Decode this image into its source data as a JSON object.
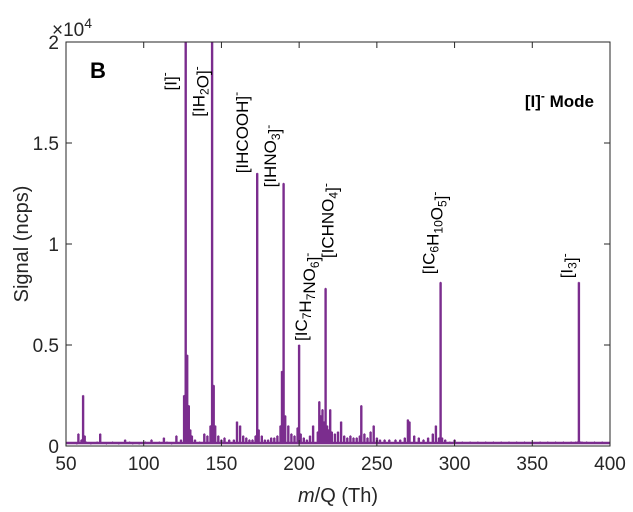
{
  "chart_data": {
    "type": "line",
    "panel_label": "B",
    "mode_label": {
      "main": "[I]",
      "sup": "-",
      "suffix": " Mode"
    },
    "xlabel": {
      "italic": "m",
      "rest": "/Q (Th)"
    },
    "ylabel": "Signal (ncps)",
    "exponent_label": {
      "prefix": "×10",
      "power": "4"
    },
    "xlim": [
      50,
      400
    ],
    "ylim": [
      0,
      2
    ],
    "xticks": [
      "50",
      "100",
      "150",
      "200",
      "250",
      "300",
      "350",
      "400"
    ],
    "yticks": [
      "0",
      "0.5",
      "1",
      "1.5",
      "2"
    ],
    "line_color": "#7B2D8E",
    "series": [
      {
        "x": [
          57,
          58,
          60,
          61,
          62,
          63,
          66,
          70,
          72,
          76,
          80,
          84,
          88,
          91,
          93,
          97,
          101,
          105,
          110,
          113,
          115,
          118,
          121,
          124,
          126,
          127,
          128,
          129,
          130,
          131,
          133,
          136,
          139,
          141,
          143,
          144,
          145,
          146,
          148,
          150,
          152,
          155,
          158,
          160,
          162,
          164,
          166,
          168,
          170,
          172,
          173,
          174,
          176,
          178,
          180,
          182,
          184,
          186,
          188,
          189,
          190,
          191,
          193,
          195,
          197,
          199,
          200,
          201,
          203,
          205,
          207,
          209,
          212,
          213,
          214,
          215,
          216,
          217,
          218,
          219,
          220,
          221,
          223,
          225,
          227,
          229,
          231,
          233,
          235,
          237,
          239,
          240,
          242,
          244,
          246,
          248,
          250,
          252,
          255,
          258,
          262,
          265,
          268,
          270,
          271,
          274,
          277,
          280,
          283,
          286,
          288,
          290,
          291,
          292,
          294,
          297,
          300,
          305,
          310,
          315,
          320,
          325,
          330,
          335,
          340,
          345,
          350,
          355,
          360,
          365,
          370,
          375,
          378,
          379,
          380,
          381,
          382,
          385,
          390,
          395,
          400
        ],
        "y": [
          0.01,
          0.06,
          0.03,
          0.25,
          0.05,
          0.02,
          0.01,
          0.02,
          0.06,
          0.01,
          0.02,
          0.01,
          0.03,
          0.02,
          0.01,
          0.01,
          0.02,
          0.03,
          0.02,
          0.04,
          0.02,
          0.01,
          0.05,
          0.03,
          0.25,
          2.0,
          0.45,
          0.2,
          0.08,
          0.05,
          0.03,
          0.02,
          0.06,
          0.05,
          0.1,
          2.0,
          0.3,
          0.1,
          0.05,
          0.03,
          0.04,
          0.03,
          0.03,
          0.12,
          0.1,
          0.05,
          0.04,
          0.03,
          0.03,
          0.05,
          1.35,
          0.08,
          0.05,
          0.03,
          0.03,
          0.04,
          0.04,
          0.05,
          0.1,
          0.37,
          1.3,
          0.15,
          0.1,
          0.06,
          0.05,
          0.09,
          0.5,
          0.06,
          0.04,
          0.03,
          0.05,
          0.1,
          0.07,
          0.22,
          0.15,
          0.18,
          0.12,
          0.78,
          0.1,
          0.08,
          0.18,
          0.07,
          0.06,
          0.07,
          0.12,
          0.05,
          0.04,
          0.05,
          0.04,
          0.04,
          0.05,
          0.2,
          0.06,
          0.04,
          0.07,
          0.1,
          0.04,
          0.03,
          0.03,
          0.03,
          0.03,
          0.03,
          0.04,
          0.13,
          0.12,
          0.05,
          0.04,
          0.03,
          0.04,
          0.06,
          0.1,
          0.04,
          0.81,
          0.04,
          0.03,
          0.02,
          0.03,
          0.02,
          0.02,
          0.02,
          0.02,
          0.02,
          0.02,
          0.02,
          0.02,
          0.02,
          0.02,
          0.02,
          0.02,
          0.02,
          0.02,
          0.02,
          0.02,
          0.02,
          0.81,
          0.02,
          0.02,
          0.02,
          0.02,
          0.02,
          0.02
        ]
      }
    ],
    "annotations": [
      {
        "x": 121,
        "y": 1.76,
        "parts": [
          {
            "t": "[I]"
          },
          {
            "t": "-",
            "s": "sup"
          }
        ]
      },
      {
        "x": 139,
        "y": 1.63,
        "parts": [
          {
            "t": "[IH"
          },
          {
            "t": "2",
            "s": "sub"
          },
          {
            "t": "O]"
          },
          {
            "t": "-",
            "s": "sup"
          }
        ]
      },
      {
        "x": 167,
        "y": 1.35,
        "parts": [
          {
            "t": "[IHCOOH]"
          },
          {
            "t": "-",
            "s": "sup"
          }
        ]
      },
      {
        "x": 185,
        "y": 1.28,
        "parts": [
          {
            "t": "[IHNO"
          },
          {
            "t": "3",
            "s": "sub"
          },
          {
            "t": "]"
          },
          {
            "t": "-",
            "s": "sup"
          }
        ]
      },
      {
        "x": 205,
        "y": 0.52,
        "parts": [
          {
            "t": "[IC"
          },
          {
            "t": "7",
            "s": "sub"
          },
          {
            "t": "H"
          },
          {
            "t": "7",
            "s": "sub"
          },
          {
            "t": "NO"
          },
          {
            "t": "6",
            "s": "sub"
          },
          {
            "t": "]"
          },
          {
            "t": "-",
            "s": "sup"
          }
        ]
      },
      {
        "x": 222,
        "y": 0.93,
        "parts": [
          {
            "t": "[ICHNO"
          },
          {
            "t": "4",
            "s": "sub"
          },
          {
            "t": "]"
          },
          {
            "t": "-",
            "s": "sup"
          }
        ]
      },
      {
        "x": 287,
        "y": 0.85,
        "parts": [
          {
            "t": "[IC"
          },
          {
            "t": "6",
            "s": "sub"
          },
          {
            "t": "H"
          },
          {
            "t": "10",
            "s": "sub"
          },
          {
            "t": "O"
          },
          {
            "t": "5",
            "s": "sub"
          },
          {
            "t": "]"
          },
          {
            "t": "-",
            "s": "sup"
          }
        ]
      },
      {
        "x": 376,
        "y": 0.83,
        "parts": [
          {
            "t": "[I"
          },
          {
            "t": "3",
            "s": "sub"
          },
          {
            "t": "]"
          },
          {
            "t": "-",
            "s": "sup"
          }
        ]
      }
    ]
  }
}
